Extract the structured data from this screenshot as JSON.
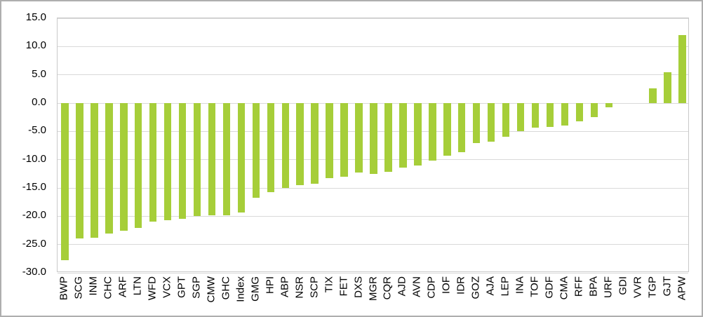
{
  "chart_data": {
    "type": "bar",
    "title": "",
    "xlabel": "",
    "ylabel": "",
    "categories": [
      "BWP",
      "SCG",
      "INM",
      "CHC",
      "ARF",
      "LTN",
      "WFD",
      "VCX",
      "GPT",
      "SGP",
      "CMW",
      "GHC",
      "Index",
      "GMG",
      "HPI",
      "ABP",
      "NSR",
      "SCP",
      "TIX",
      "FET",
      "DXS",
      "MGR",
      "CQR",
      "AJD",
      "AVN",
      "CDP",
      "IOF",
      "IDR",
      "GOZ",
      "AJA",
      "LEP",
      "INA",
      "TOF",
      "GDF",
      "CMA",
      "RFF",
      "BPA",
      "URF",
      "GDI",
      "VVR",
      "TGP",
      "GJT",
      "APW"
    ],
    "values": [
      -27.8,
      -23.9,
      -23.8,
      -23.1,
      -22.6,
      -22.1,
      -20.9,
      -20.7,
      -20.5,
      -19.9,
      -19.8,
      -19.8,
      -19.3,
      -16.7,
      -15.8,
      -15.0,
      -14.5,
      -14.3,
      -13.3,
      -13.0,
      -12.3,
      -12.5,
      -12.2,
      -11.4,
      -11.0,
      -10.2,
      -9.3,
      -8.7,
      -7.1,
      -6.8,
      -5.9,
      -4.9,
      -4.4,
      -4.2,
      -4.0,
      -3.2,
      -2.5,
      -0.8,
      0.0,
      0.0,
      2.6,
      5.5,
      12.0
    ],
    "ytick_labels": [
      "15.0",
      "10.0",
      "5.0",
      "0.0",
      "-5.0",
      "-10.0",
      "-15.0",
      "-20.0",
      "-25.0",
      "-30.0"
    ],
    "ytick_values": [
      15,
      10,
      5,
      0,
      -5,
      -10,
      -15,
      -20,
      -25,
      -30
    ],
    "ylim": [
      -30,
      15
    ],
    "grid": "horizontal",
    "legend": "none",
    "bar_color": "#a6ce39",
    "gridline_color": "#d9d9d9",
    "plot_border_color": "#c9c9c9",
    "text_color": "#000000"
  }
}
